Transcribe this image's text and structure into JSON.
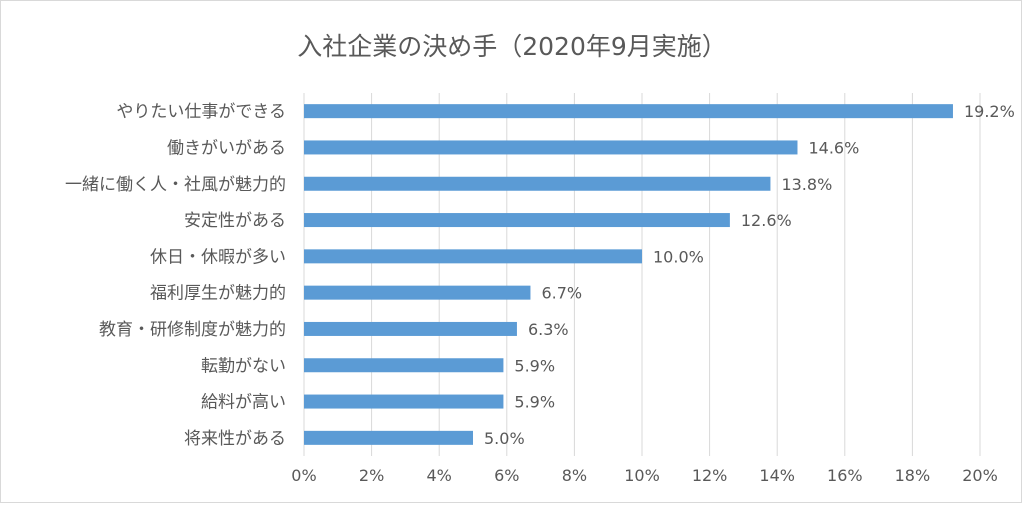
{
  "chart_data": {
    "type": "bar",
    "orientation": "horizontal",
    "title": "入社企業の決め手（2020年9月実施）",
    "categories": [
      "やりたい仕事ができる",
      "働きがいがある",
      "一緒に働く人・社風が魅力的",
      "安定性がある",
      "休日・休暇が多い",
      "福利厚生が魅力的",
      "教育・研修制度が魅力的",
      "転勤がない",
      "給料が高い",
      "将来性がある"
    ],
    "values": [
      19.2,
      14.6,
      13.8,
      12.6,
      10.0,
      6.7,
      6.3,
      5.9,
      5.9,
      5.0
    ],
    "data_labels": [
      "19.2%",
      "14.6%",
      "13.8%",
      "12.6%",
      "10.0%",
      "6.7%",
      "6.3%",
      "5.9%",
      "5.9%",
      "5.0%"
    ],
    "xlim": [
      0,
      20
    ],
    "xticks": [
      0,
      2,
      4,
      6,
      8,
      10,
      12,
      14,
      16,
      18,
      20
    ],
    "xtick_labels": [
      "0%",
      "2%",
      "4%",
      "6%",
      "8%",
      "10%",
      "12%",
      "14%",
      "16%",
      "18%",
      "20%"
    ],
    "xlabel": "",
    "ylabel": "",
    "grid": true,
    "legend": "none",
    "bar_color": "#5b9bd5",
    "grid_color": "#d9d9d9",
    "text_color": "#595959"
  }
}
